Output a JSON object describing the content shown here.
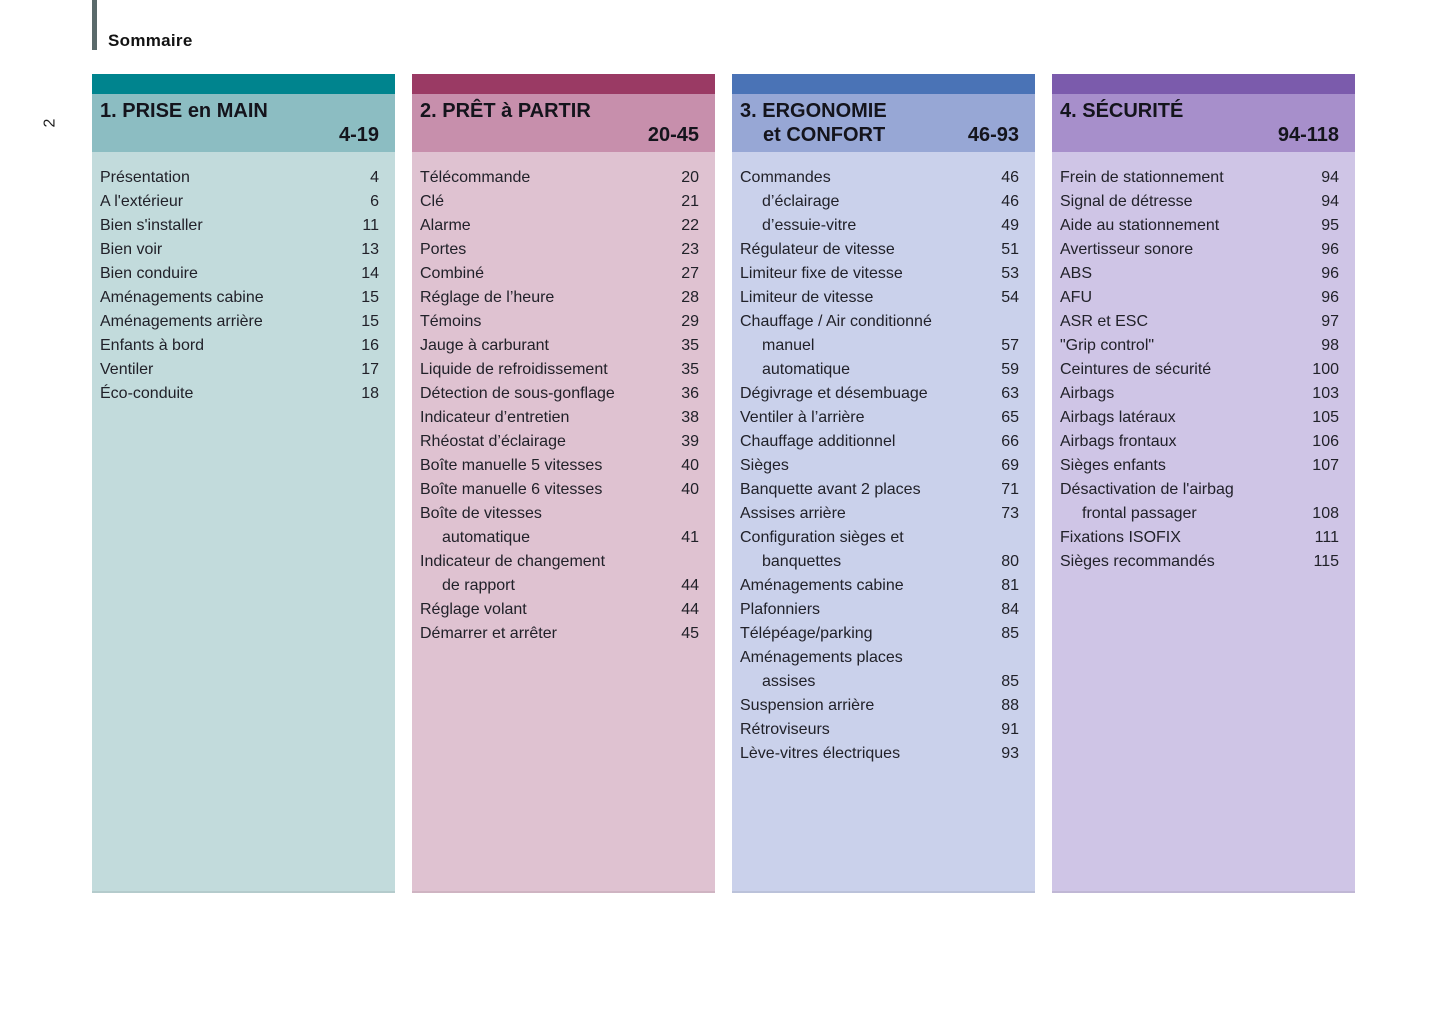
{
  "page": {
    "label": "Sommaire",
    "page_number": "2",
    "rule_color": "#5a6a6b"
  },
  "columns": [
    {
      "title_line1": "1. PRISE en MAIN",
      "title_line2": "",
      "range": "4-19",
      "colors": {
        "strip": "#00848E",
        "band": "#8CBDC2",
        "body": "#C2DBDC"
      },
      "items": [
        {
          "label": "Présentation",
          "page": "4",
          "indent": false
        },
        {
          "label": "A l'extérieur",
          "page": "6",
          "indent": false
        },
        {
          "label": "Bien s'installer",
          "page": "11",
          "indent": false
        },
        {
          "label": "Bien voir",
          "page": "13",
          "indent": false
        },
        {
          "label": "Bien conduire",
          "page": "14",
          "indent": false
        },
        {
          "label": "Aménagements cabine",
          "page": "15",
          "indent": false
        },
        {
          "label": "Aménagements arrière",
          "page": "15",
          "indent": false
        },
        {
          "label": "Enfants à bord",
          "page": "16",
          "indent": false
        },
        {
          "label": "Ventiler",
          "page": "17",
          "indent": false
        },
        {
          "label": "Éco-conduite",
          "page": "18",
          "indent": false
        }
      ]
    },
    {
      "title_line1": "2. PRÊT à PARTIR",
      "title_line2": "",
      "range": "20-45",
      "colors": {
        "strip": "#9A3A64",
        "band": "#C78FAC",
        "body": "#DFC2D1"
      },
      "items": [
        {
          "label": "Télécommande",
          "page": "20",
          "indent": false
        },
        {
          "label": "Clé",
          "page": "21",
          "indent": false
        },
        {
          "label": "Alarme",
          "page": "22",
          "indent": false
        },
        {
          "label": "Portes",
          "page": "23",
          "indent": false
        },
        {
          "label": "Combiné",
          "page": "27",
          "indent": false
        },
        {
          "label": "Réglage de l’heure",
          "page": "28",
          "indent": false
        },
        {
          "label": "Témoins",
          "page": "29",
          "indent": false
        },
        {
          "label": "Jauge à carburant",
          "page": "35",
          "indent": false
        },
        {
          "label": "Liquide de refroidissement",
          "page": "35",
          "indent": false
        },
        {
          "label": "Détection de sous-gonflage",
          "page": "36",
          "indent": false
        },
        {
          "label": "Indicateur d’entretien",
          "page": "38",
          "indent": false
        },
        {
          "label": "Rhéostat d’éclairage",
          "page": "39",
          "indent": false
        },
        {
          "label": "Boîte manuelle 5 vitesses",
          "page": "40",
          "indent": false
        },
        {
          "label": "Boîte manuelle 6 vitesses",
          "page": "40",
          "indent": false
        },
        {
          "label": "Boîte de vitesses",
          "page": "",
          "indent": false
        },
        {
          "label": "automatique",
          "page": "41",
          "indent": true
        },
        {
          "label": "Indicateur de changement",
          "page": "",
          "indent": false
        },
        {
          "label": "de rapport",
          "page": "44",
          "indent": true
        },
        {
          "label": "Réglage volant",
          "page": "44",
          "indent": false
        },
        {
          "label": "Démarrer et arrêter",
          "page": "45",
          "indent": false
        }
      ]
    },
    {
      "title_line1": "3. ERGONOMIE",
      "title_line2": "et CONFORT",
      "range": "46-93",
      "colors": {
        "strip": "#4A73B6",
        "band": "#97A7D5",
        "body": "#CAD1EB"
      },
      "items": [
        {
          "label": "Commandes",
          "page": "46",
          "indent": false
        },
        {
          "label": "d’éclairage",
          "page": "46",
          "indent": true
        },
        {
          "label": "d’essuie-vitre",
          "page": "49",
          "indent": true
        },
        {
          "label": "Régulateur de vitesse",
          "page": "51",
          "indent": false
        },
        {
          "label": "Limiteur fixe de vitesse",
          "page": "53",
          "indent": false
        },
        {
          "label": "Limiteur de vitesse",
          "page": "54",
          "indent": false
        },
        {
          "label": "Chauffage / Air conditionné",
          "page": "",
          "indent": false
        },
        {
          "label": "manuel",
          "page": "57",
          "indent": true
        },
        {
          "label": "automatique",
          "page": "59",
          "indent": true
        },
        {
          "label": "Dégivrage et désembuage",
          "page": "63",
          "indent": false
        },
        {
          "label": "Ventiler à l’arrière",
          "page": "65",
          "indent": false
        },
        {
          "label": "Chauffage additionnel",
          "page": "66",
          "indent": false
        },
        {
          "label": "Sièges",
          "page": "69",
          "indent": false
        },
        {
          "label": "Banquette avant 2 places",
          "page": "71",
          "indent": false
        },
        {
          "label": "Assises arrière",
          "page": "73",
          "indent": false
        },
        {
          "label": "Configuration sièges et",
          "page": "",
          "indent": false
        },
        {
          "label": "banquettes",
          "page": "80",
          "indent": true
        },
        {
          "label": "Aménagements cabine",
          "page": "81",
          "indent": false
        },
        {
          "label": "Plafonniers",
          "page": "84",
          "indent": false
        },
        {
          "label": "Télépéage/parking",
          "page": "85",
          "indent": false
        },
        {
          "label": "Aménagements places",
          "page": "",
          "indent": false
        },
        {
          "label": "assises",
          "page": "85",
          "indent": true
        },
        {
          "label": "Suspension arrière",
          "page": "88",
          "indent": false
        },
        {
          "label": "Rétroviseurs",
          "page": "91",
          "indent": false
        },
        {
          "label": "Lève-vitres électriques",
          "page": "93",
          "indent": false
        }
      ]
    },
    {
      "title_line1": "4. SÉCURITÉ",
      "title_line2": "",
      "range": "94-118",
      "colors": {
        "strip": "#7B5BAC",
        "band": "#A78FCB",
        "body": "#CFC5E6"
      },
      "items": [
        {
          "label": "Frein de stationnement",
          "page": "94",
          "indent": false
        },
        {
          "label": "Signal de détresse",
          "page": "94",
          "indent": false
        },
        {
          "label": "Aide au stationnement",
          "page": "95",
          "indent": false
        },
        {
          "label": "Avertisseur sonore",
          "page": "96",
          "indent": false
        },
        {
          "label": "ABS",
          "page": "96",
          "indent": false
        },
        {
          "label": "AFU",
          "page": "96",
          "indent": false
        },
        {
          "label": "ASR et ESC",
          "page": "97",
          "indent": false
        },
        {
          "label": "\"Grip control\"",
          "page": "98",
          "indent": false
        },
        {
          "label": "Ceintures de sécurité",
          "page": "100",
          "indent": false
        },
        {
          "label": "Airbags",
          "page": "103",
          "indent": false
        },
        {
          "label": "Airbags latéraux",
          "page": "105",
          "indent": false
        },
        {
          "label": "Airbags frontaux",
          "page": "106",
          "indent": false
        },
        {
          "label": "Sièges enfants",
          "page": "107",
          "indent": false
        },
        {
          "label": "Désactivation de l'airbag",
          "page": "",
          "indent": false
        },
        {
          "label": "frontal passager",
          "page": "108",
          "indent": true
        },
        {
          "label": "Fixations ISOFIX",
          "page": "111",
          "indent": false
        },
        {
          "label": "Sièges recommandés",
          "page": "115",
          "indent": false
        }
      ]
    }
  ]
}
